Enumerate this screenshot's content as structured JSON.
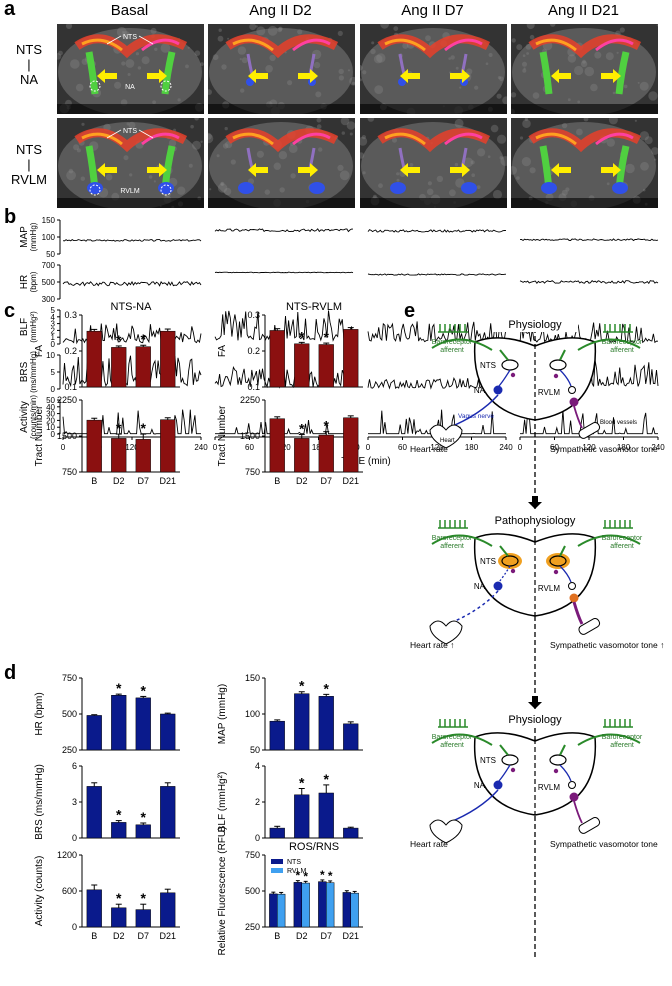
{
  "panel_a": {
    "label": "a",
    "columns": [
      "Basal",
      "Ang II D2",
      "Ang II D7",
      "Ang II D21"
    ],
    "rows": [
      {
        "lines": [
          "NTS",
          "|",
          "NA"
        ],
        "annotations": [
          "NTS",
          "NA"
        ]
      },
      {
        "lines": [
          "NTS",
          "|",
          "RVLM"
        ],
        "annotations": [
          "NTS",
          "RVLM"
        ]
      }
    ]
  },
  "panel_b": {
    "label": "b",
    "traces": [
      {
        "name": "MAP",
        "unit": "(mmHg)",
        "yticks": [
          "150",
          "100",
          "50"
        ]
      },
      {
        "name": "HR",
        "unit": "(bpm)",
        "yticks": [
          "700",
          "500",
          "300"
        ]
      },
      {
        "name": "BLF",
        "unit": "(mmHg²)",
        "yticks": [
          "5",
          "4",
          "3",
          "2",
          "1",
          "0"
        ]
      },
      {
        "name": "BRS",
        "unit": "(ms/mmHg)",
        "yticks": [
          "10",
          "5",
          "0"
        ]
      },
      {
        "name": "Activity",
        "unit": "(counts/min)",
        "yticks": [
          "50",
          "40",
          "30",
          "20",
          "10",
          "0"
        ]
      }
    ],
    "xticks": [
      "0",
      "60",
      "120",
      "180",
      "240"
    ],
    "xlabel": "TIME (min)"
  },
  "panel_c": {
    "label": "c"
  },
  "panel_d": {
    "label": "d"
  },
  "panel_e": {
    "label": "e",
    "sections": [
      {
        "title": "Physiology",
        "left_out": "Heart rate",
        "right_out": "Sympathetic vasomotor tone",
        "extra": [
          "Vagus nerve",
          "Heart",
          "Blood vessels"
        ]
      },
      {
        "title": "Pathophysiology",
        "left_out": "Heart rate ↑",
        "right_out": "Sympathetic vasomotor tone ↑",
        "extra": []
      },
      {
        "title": "Physiology",
        "left_out": "Heart rate",
        "right_out": "Sympathetic vasomotor tone",
        "extra": []
      }
    ],
    "baro_left": [
      "Baroreceptor",
      "afferent"
    ],
    "baro_right": [
      "Baroreceptor",
      "afferent"
    ],
    "nts": "NTS",
    "na": "NA",
    "rvlm": "RVLM"
  },
  "chart_data": [
    {
      "type": "bar",
      "title": "NTS-NA",
      "ylabel": "FA",
      "categories": [
        "B",
        "D2",
        "D7",
        "D21"
      ],
      "values": [
        0.255,
        0.21,
        0.212,
        0.255
      ],
      "errors": [
        0.005,
        0.004,
        0.004,
        0.006
      ],
      "ylim": [
        0.1,
        0.3
      ],
      "yticks": [
        "0.3",
        "0.2",
        "0.1"
      ],
      "sig": [
        false,
        true,
        true,
        false
      ],
      "color": "#8b1010"
    },
    {
      "type": "bar",
      "title": "",
      "ylabel": "Tract Number",
      "categories": [
        "B",
        "D2",
        "D7",
        "D21"
      ],
      "values": [
        1830,
        1450,
        1430,
        1840
      ],
      "errors": [
        40,
        90,
        110,
        40
      ],
      "ylim": [
        750,
        2250
      ],
      "yticks": [
        "2250",
        "1500",
        "750"
      ],
      "sig": [
        false,
        true,
        true,
        false
      ],
      "color": "#8b1010"
    },
    {
      "type": "bar",
      "title": "NTS-RVLM",
      "ylabel": "FA",
      "categories": [
        "B",
        "D2",
        "D7",
        "D21"
      ],
      "values": [
        0.257,
        0.22,
        0.218,
        0.26
      ],
      "errors": [
        0.005,
        0.004,
        0.004,
        0.005
      ],
      "ylim": [
        0.1,
        0.3
      ],
      "yticks": [
        "0.3",
        "0.2",
        "0.1"
      ],
      "sig": [
        false,
        true,
        true,
        false
      ],
      "color": "#8b1010"
    },
    {
      "type": "bar",
      "title": "",
      "ylabel": "Tract Number",
      "categories": [
        "B",
        "D2",
        "D7",
        "D21"
      ],
      "values": [
        1860,
        1450,
        1520,
        1880
      ],
      "errors": [
        40,
        80,
        70,
        40
      ],
      "ylim": [
        750,
        2250
      ],
      "yticks": [
        "2250",
        "1500",
        "750"
      ],
      "sig": [
        false,
        true,
        true,
        false
      ],
      "color": "#8b1010"
    },
    {
      "type": "bar",
      "title": "",
      "ylabel": "HR (bpm)",
      "categories": [
        "B",
        "D2",
        "D7",
        "D21"
      ],
      "values": [
        490,
        630,
        612,
        500
      ],
      "errors": [
        5,
        8,
        10,
        6
      ],
      "ylim": [
        250,
        750
      ],
      "yticks": [
        "750",
        "500",
        "250"
      ],
      "sig": [
        false,
        true,
        true,
        false
      ],
      "color": "#0a1a8c"
    },
    {
      "type": "bar",
      "title": "",
      "ylabel": "BRS (ms/mmHg)",
      "categories": [
        "B",
        "D2",
        "D7",
        "D21"
      ],
      "values": [
        4.3,
        1.3,
        1.1,
        4.3
      ],
      "errors": [
        0.3,
        0.15,
        0.15,
        0.3
      ],
      "ylim": [
        0,
        6
      ],
      "yticks": [
        "6",
        "3",
        "0"
      ],
      "sig": [
        false,
        true,
        true,
        false
      ],
      "color": "#0a1a8c"
    },
    {
      "type": "bar",
      "title": "",
      "ylabel": "Activity (counts)",
      "categories": [
        "B",
        "D2",
        "D7",
        "D21"
      ],
      "values": [
        620,
        320,
        290,
        570
      ],
      "errors": [
        80,
        60,
        90,
        60
      ],
      "ylim": [
        0,
        1200
      ],
      "yticks": [
        "1200",
        "600",
        "0"
      ],
      "sig": [
        false,
        true,
        true,
        false
      ],
      "color": "#0a1a8c"
    },
    {
      "type": "bar",
      "title": "",
      "ylabel": "MAP (mmHg)",
      "categories": [
        "B",
        "D2",
        "D7",
        "D21"
      ],
      "values": [
        84,
        126,
        122,
        80
      ],
      "errors": [
        2,
        3,
        3,
        3
      ],
      "ylim": [
        40,
        150
      ],
      "yticks": [
        "150",
        "100",
        "50"
      ],
      "sig": [
        false,
        true,
        true,
        false
      ],
      "color": "#0a1a8c"
    },
    {
      "type": "bar",
      "title": "",
      "ylabel": "BLF (mmHg²)",
      "categories": [
        "B",
        "D2",
        "D7",
        "D21"
      ],
      "values": [
        0.55,
        2.4,
        2.5,
        0.55
      ],
      "errors": [
        0.1,
        0.35,
        0.45,
        0.05
      ],
      "ylim": [
        0,
        4
      ],
      "yticks": [
        "4",
        "2",
        "0"
      ],
      "sig": [
        false,
        true,
        true,
        false
      ],
      "color": "#0a1a8c"
    },
    {
      "type": "bar",
      "title": "ROS/RNS",
      "ylabel": "Relative Fluorescence (RFU)",
      "categories": [
        "B",
        "D2",
        "D7",
        "D21"
      ],
      "series": [
        {
          "name": "NTS",
          "values": [
            480,
            560,
            565,
            490
          ],
          "color": "#0a1a8c"
        },
        {
          "name": "RVLM",
          "values": [
            478,
            555,
            558,
            485
          ],
          "color": "#3fa0f0"
        }
      ],
      "errors": [
        12,
        12,
        12,
        12
      ],
      "ylim": [
        250,
        750
      ],
      "yticks": [
        "750",
        "500",
        "250"
      ],
      "sig": [
        false,
        true,
        true,
        false
      ],
      "legend": "top-left"
    }
  ]
}
